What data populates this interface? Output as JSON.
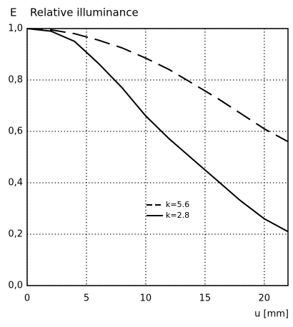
{
  "chart_data": {
    "type": "line",
    "title": "Relative illuminance",
    "y_label": "E",
    "x_label": "u [mm]",
    "x": [
      0,
      2,
      4,
      6,
      8,
      10,
      12,
      14,
      16,
      18,
      20,
      22
    ],
    "series": [
      {
        "name": "k=5.6",
        "color": "#000000",
        "style": "dashed",
        "values": [
          1.0,
          0.995,
          0.98,
          0.955,
          0.925,
          0.885,
          0.84,
          0.785,
          0.73,
          0.67,
          0.61,
          0.56
        ]
      },
      {
        "name": "k=2.8",
        "color": "#000000",
        "style": "solid",
        "values": [
          1.0,
          0.99,
          0.95,
          0.865,
          0.77,
          0.66,
          0.57,
          0.49,
          0.41,
          0.33,
          0.26,
          0.21
        ]
      }
    ],
    "xlim": [
      0,
      22
    ],
    "ylim": [
      0,
      1
    ],
    "xticks": [
      0,
      5,
      10,
      15,
      20
    ],
    "yticks": [
      {
        "value": 0,
        "label": "0,0"
      },
      {
        "value": 0.2,
        "label": "0,2"
      },
      {
        "value": 0.4,
        "label": "0,4"
      },
      {
        "value": 0.6,
        "label": "0,6"
      },
      {
        "value": 0.8,
        "label": "0,8"
      },
      {
        "value": 1,
        "label": "1,0"
      }
    ],
    "grid": true
  }
}
